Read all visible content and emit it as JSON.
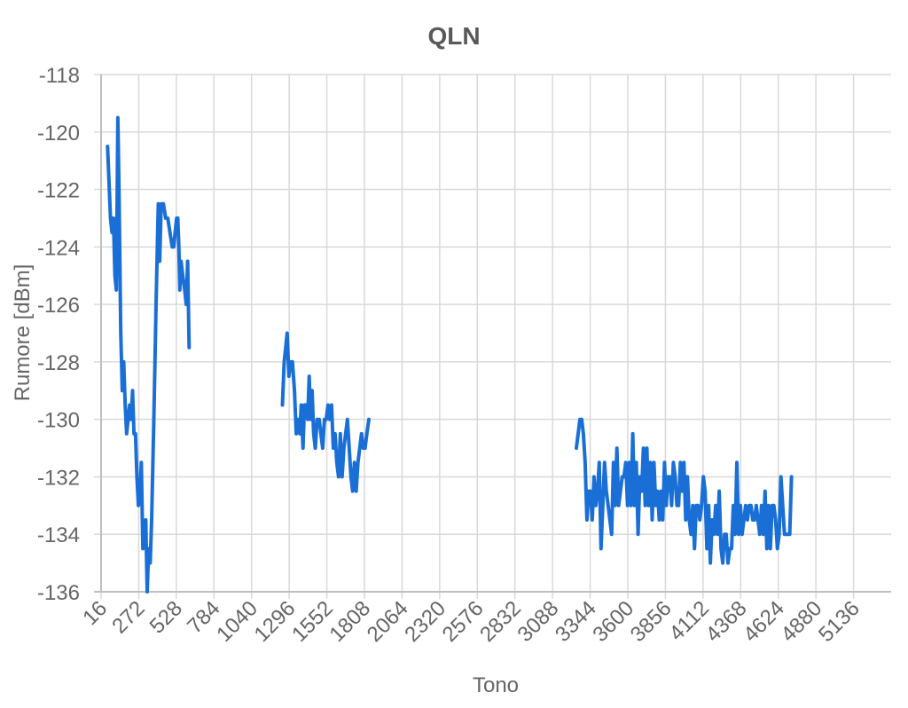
{
  "chart_data": {
    "type": "line",
    "title": "QLN",
    "xlabel": "Tono",
    "ylabel": "Rumore [dBm]",
    "xlim": [
      16,
      5392
    ],
    "ylim": [
      -136,
      -118
    ],
    "x_ticks": [
      16,
      272,
      528,
      784,
      1040,
      1296,
      1552,
      1808,
      2064,
      2320,
      2576,
      2832,
      3088,
      3344,
      3600,
      3856,
      4112,
      4368,
      4624,
      4880,
      5136
    ],
    "x_tick_labels": [
      "16",
      "272",
      "528",
      "784",
      "1040",
      "1296",
      "1552",
      "1808",
      "2064",
      "2320",
      "2576",
      "2832",
      "3088",
      "3344",
      "3600",
      "3856",
      "4112",
      "4368",
      "4624",
      "4880",
      "5136"
    ],
    "y_ticks": [
      -118,
      -120,
      -122,
      -124,
      -126,
      -128,
      -130,
      -132,
      -134,
      -136
    ],
    "y_tick_labels": [
      "-118",
      "-120",
      "-122",
      "-124",
      "-126",
      "-128",
      "-130",
      "-132",
      "-134",
      "-136"
    ],
    "grid": true,
    "line_color": "#1a6fd6",
    "series": [
      {
        "segments": [
          [
            [
              60,
              -120.5
            ],
            [
              80,
              -123
            ],
            [
              90,
              -123.5
            ],
            [
              100,
              -123
            ],
            [
              110,
              -125
            ],
            [
              120,
              -125.5
            ],
            [
              130,
              -119.5
            ],
            [
              138,
              -122
            ],
            [
              150,
              -127
            ],
            [
              160,
              -129
            ],
            [
              170,
              -128
            ],
            [
              180,
              -129.5
            ],
            [
              190,
              -130.5
            ],
            [
              200,
              -130
            ],
            [
              210,
              -129.5
            ],
            [
              220,
              -130
            ],
            [
              230,
              -129
            ],
            [
              240,
              -130.5
            ],
            [
              250,
              -130.5
            ],
            [
              260,
              -132
            ],
            [
              270,
              -133
            ],
            [
              280,
              -132.5
            ],
            [
              290,
              -131.5
            ],
            [
              300,
              -134.5
            ],
            [
              310,
              -134
            ],
            [
              320,
              -133.5
            ],
            [
              330,
              -136
            ],
            [
              340,
              -134.5
            ],
            [
              350,
              -135
            ],
            [
              360,
              -133.5
            ],
            [
              375,
              -130
            ],
            [
              390,
              -126
            ],
            [
              405,
              -122.5
            ],
            [
              415,
              -124.5
            ],
            [
              425,
              -122.5
            ],
            [
              440,
              -122.5
            ],
            [
              455,
              -123
            ],
            [
              470,
              -123
            ],
            [
              485,
              -123.5
            ],
            [
              500,
              -124
            ],
            [
              510,
              -124
            ],
            [
              520,
              -123.5
            ],
            [
              530,
              -123
            ],
            [
              538,
              -123
            ],
            [
              545,
              -124
            ],
            [
              552,
              -125.5
            ],
            [
              560,
              -124.5
            ],
            [
              572,
              -125
            ],
            [
              585,
              -125.5
            ],
            [
              595,
              -126
            ],
            [
              605,
              -124.5
            ],
            [
              615,
              -127.5
            ]
          ],
          [
            [
              1250,
              -129.5
            ],
            [
              1262,
              -128
            ],
            [
              1272,
              -127.5
            ],
            [
              1282,
              -127
            ],
            [
              1294,
              -128.5
            ],
            [
              1306,
              -128
            ],
            [
              1318,
              -128
            ],
            [
              1332,
              -129
            ],
            [
              1344,
              -130.5
            ],
            [
              1356,
              -130
            ],
            [
              1368,
              -130.5
            ],
            [
              1378,
              -129.5
            ],
            [
              1390,
              -131
            ],
            [
              1400,
              -129.5
            ],
            [
              1412,
              -129.5
            ],
            [
              1422,
              -130
            ],
            [
              1432,
              -128.5
            ],
            [
              1442,
              -130
            ],
            [
              1452,
              -129
            ],
            [
              1462,
              -130.5
            ],
            [
              1474,
              -131
            ],
            [
              1486,
              -130
            ],
            [
              1500,
              -130
            ],
            [
              1512,
              -130.5
            ],
            [
              1524,
              -131
            ],
            [
              1536,
              -130
            ],
            [
              1548,
              -130
            ],
            [
              1560,
              -129.5
            ],
            [
              1572,
              -130
            ],
            [
              1584,
              -129.5
            ],
            [
              1596,
              -131
            ],
            [
              1608,
              -130.5
            ],
            [
              1620,
              -131.5
            ],
            [
              1632,
              -132
            ],
            [
              1644,
              -130.5
            ],
            [
              1656,
              -132
            ],
            [
              1668,
              -131
            ],
            [
              1680,
              -130.5
            ],
            [
              1692,
              -130
            ],
            [
              1704,
              -131
            ],
            [
              1716,
              -132
            ],
            [
              1728,
              -132.5
            ],
            [
              1740,
              -131.5
            ],
            [
              1752,
              -132.5
            ],
            [
              1764,
              -131.5
            ],
            [
              1776,
              -131
            ],
            [
              1788,
              -130.5
            ],
            [
              1800,
              -131
            ],
            [
              1812,
              -131
            ],
            [
              1824,
              -130.5
            ],
            [
              1838,
              -130
            ]
          ],
          [
            [
              3250,
              -131
            ],
            [
              3262,
              -130.5
            ],
            [
              3274,
              -130
            ],
            [
              3286,
              -130
            ],
            [
              3298,
              -130.5
            ],
            [
              3310,
              -131.5
            ],
            [
              3322,
              -133.5
            ],
            [
              3334,
              -132.5
            ],
            [
              3346,
              -132.5
            ],
            [
              3358,
              -133.5
            ],
            [
              3370,
              -132
            ],
            [
              3382,
              -133
            ],
            [
              3394,
              -132.5
            ],
            [
              3406,
              -131.5
            ],
            [
              3418,
              -134.5
            ],
            [
              3430,
              -133
            ],
            [
              3442,
              -131.5
            ],
            [
              3454,
              -132.5
            ],
            [
              3466,
              -133
            ],
            [
              3478,
              -133.5
            ],
            [
              3490,
              -134
            ],
            [
              3502,
              -131.5
            ],
            [
              3514,
              -133
            ],
            [
              3526,
              -131
            ],
            [
              3538,
              -133
            ],
            [
              3550,
              -132.5
            ],
            [
              3562,
              -132
            ],
            [
              3574,
              -132
            ],
            [
              3586,
              -131.5
            ],
            [
              3598,
              -133
            ],
            [
              3610,
              -131.5
            ],
            [
              3622,
              -133
            ],
            [
              3634,
              -130.5
            ],
            [
              3646,
              -133
            ],
            [
              3658,
              -131.5
            ],
            [
              3670,
              -134
            ],
            [
              3682,
              -132
            ],
            [
              3694,
              -132.5
            ],
            [
              3706,
              -131
            ],
            [
              3718,
              -133
            ],
            [
              3730,
              -131
            ],
            [
              3742,
              -133
            ],
            [
              3754,
              -131.5
            ],
            [
              3766,
              -133.5
            ],
            [
              3778,
              -131.5
            ],
            [
              3790,
              -133
            ],
            [
              3802,
              -132.5
            ],
            [
              3814,
              -133.5
            ],
            [
              3826,
              -132.5
            ],
            [
              3838,
              -133.5
            ],
            [
              3850,
              -131.5
            ],
            [
              3862,
              -133
            ],
            [
              3874,
              -132
            ],
            [
              3886,
              -132
            ],
            [
              3898,
              -133
            ],
            [
              3910,
              -131.5
            ],
            [
              3922,
              -132
            ],
            [
              3934,
              -133
            ],
            [
              3946,
              -133
            ],
            [
              3958,
              -131.5
            ],
            [
              3970,
              -132.5
            ],
            [
              3982,
              -131.5
            ],
            [
              3994,
              -133.5
            ],
            [
              4006,
              -132
            ],
            [
              4018,
              -133.5
            ],
            [
              4030,
              -134
            ],
            [
              4042,
              -133
            ],
            [
              4054,
              -134.5
            ],
            [
              4066,
              -133
            ],
            [
              4078,
              -133
            ],
            [
              4090,
              -133.5
            ],
            [
              4102,
              -133
            ],
            [
              4114,
              -132
            ],
            [
              4126,
              -132.5
            ],
            [
              4138,
              -134.5
            ],
            [
              4150,
              -133
            ],
            [
              4162,
              -135
            ],
            [
              4174,
              -133.5
            ],
            [
              4186,
              -134
            ],
            [
              4198,
              -133
            ],
            [
              4210,
              -134
            ],
            [
              4222,
              -132.5
            ],
            [
              4234,
              -134.5
            ],
            [
              4246,
              -135
            ],
            [
              4258,
              -134
            ],
            [
              4270,
              -134
            ],
            [
              4282,
              -135
            ],
            [
              4294,
              -134.5
            ],
            [
              4306,
              -134.5
            ],
            [
              4318,
              -133
            ],
            [
              4330,
              -134
            ],
            [
              4342,
              -131.5
            ],
            [
              4354,
              -134
            ],
            [
              4366,
              -133
            ],
            [
              4378,
              -134
            ],
            [
              4390,
              -133.5
            ],
            [
              4402,
              -133
            ],
            [
              4414,
              -133.5
            ],
            [
              4426,
              -133
            ],
            [
              4438,
              -133
            ],
            [
              4450,
              -133.5
            ],
            [
              4462,
              -133.5
            ],
            [
              4474,
              -133
            ],
            [
              4486,
              -133.5
            ],
            [
              4498,
              -134
            ],
            [
              4510,
              -133
            ],
            [
              4522,
              -134
            ],
            [
              4534,
              -132.5
            ],
            [
              4546,
              -134.5
            ],
            [
              4558,
              -133
            ],
            [
              4570,
              -134.5
            ],
            [
              4582,
              -133
            ],
            [
              4594,
              -133
            ],
            [
              4606,
              -133.5
            ],
            [
              4618,
              -134.5
            ],
            [
              4630,
              -134
            ],
            [
              4642,
              -132
            ],
            [
              4654,
              -133
            ],
            [
              4666,
              -134
            ],
            [
              4678,
              -134
            ],
            [
              4690,
              -134
            ],
            [
              4702,
              -134
            ],
            [
              4714,
              -132
            ]
          ]
        ]
      }
    ]
  }
}
